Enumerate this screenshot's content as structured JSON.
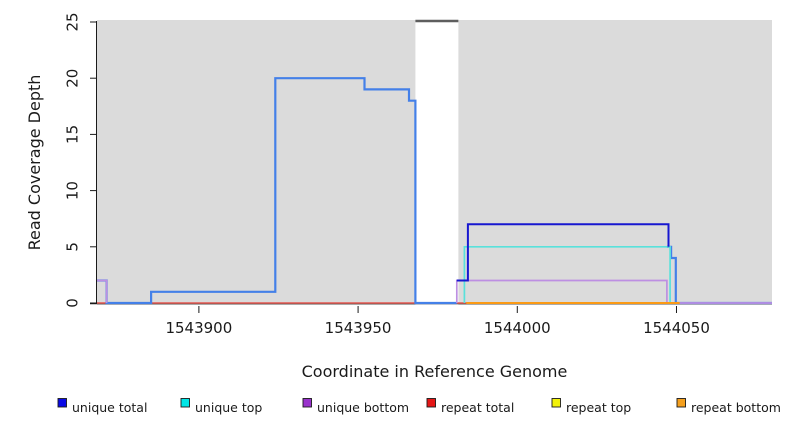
{
  "figure": {
    "xlabel": "Coordinate in Reference Genome",
    "ylabel": "Read Coverage Depth"
  },
  "chart_data": {
    "type": "line",
    "subtype": "step-coverage-plot",
    "title": "",
    "xlabel": "Coordinate in Reference Genome",
    "ylabel": "Read Coverage Depth",
    "xlim": [
      1543868,
      1544080
    ],
    "ylim": [
      0,
      25
    ],
    "grid": "off",
    "plot_background": "#dbdbdb",
    "x_axis": {
      "ticks": [
        1543900,
        1543950,
        1544000,
        1544050
      ],
      "labels": [
        "1543900",
        "1543950",
        "1544000",
        "1544050"
      ]
    },
    "y_axis": {
      "ticks": [
        0,
        5,
        10,
        15,
        20,
        25
      ],
      "labels": [
        "0",
        "5",
        "10",
        "15",
        "20",
        "25"
      ],
      "label_rotation": 90
    },
    "no_data_gap": {
      "x_start": 1543968,
      "x_end": 1543981.5,
      "fill": "#ffffff",
      "top_marker_color": "#5e5e5e",
      "note": "white band with dark off-scale marker at top of plot"
    },
    "series": [
      {
        "id": "repeat-top",
        "name": "repeat top",
        "color": "#f2f20a",
        "line_width": 1.2,
        "segments": [
          [
            [
              1543868,
              0
            ],
            [
              1544080,
              0
            ]
          ]
        ]
      },
      {
        "id": "repeat-total",
        "name": "repeat total",
        "color": "#e25562",
        "line_width": 1.6,
        "segments": [
          [
            [
              1543868,
              0
            ],
            [
              1544080,
              0
            ]
          ]
        ]
      },
      {
        "id": "coverage-total",
        "name": "total coverage line (light blue, unlabeled)",
        "color": "#4480e8",
        "line_width": 2.2,
        "segments": [
          [
            [
              1543868,
              2
            ],
            [
              1543871,
              0
            ],
            [
              1543885,
              1
            ],
            [
              1543924,
              20
            ],
            [
              1543952,
              19
            ],
            [
              1543966,
              18
            ],
            [
              1543968,
              0
            ],
            [
              1543981,
              0
            ]
          ],
          [
            [
              1544047,
              5
            ],
            [
              1544048.3,
              4
            ],
            [
              1544049.8,
              0
            ],
            [
              1544080,
              0
            ]
          ]
        ]
      },
      {
        "id": "unique-bottom",
        "name": "unique bottom",
        "color": "#bd8fe2",
        "line_width": 1.7,
        "segments": [
          [
            [
              1543868,
              2
            ],
            [
              1543871,
              0
            ]
          ],
          [
            [
              1543981,
              0
            ],
            [
              1543981,
              2
            ],
            [
              1544047,
              0
            ],
            [
              1544080,
              0
            ]
          ]
        ]
      },
      {
        "id": "unique-top",
        "name": "unique top",
        "color": "#59e1db",
        "line_width": 1.7,
        "segments": [
          [
            [
              1543983.4,
              0
            ],
            [
              1543983.4,
              5
            ],
            [
              1544048,
              0
            ]
          ]
        ]
      },
      {
        "id": "unique-total",
        "name": "unique total",
        "color": "#1717d0",
        "line_width": 2.0,
        "segments": [
          [
            [
              1543981,
              2
            ],
            [
              1543984.5,
              7
            ],
            [
              1544047.5,
              5
            ]
          ]
        ]
      },
      {
        "id": "repeat-bottom",
        "name": "repeat bottom",
        "color": "#fb9a15",
        "line_width": 2.0,
        "segments": [
          [
            [
              1543984,
              0
            ],
            [
              1544051,
              0
            ]
          ]
        ]
      }
    ],
    "legend": {
      "position": "bottom",
      "items": [
        {
          "label": "unique total",
          "color": "#0a0ae6"
        },
        {
          "label": "unique top",
          "color": "#00e6e6"
        },
        {
          "label": "unique bottom",
          "color": "#9932cc"
        },
        {
          "label": "repeat total",
          "color": "#e51616"
        },
        {
          "label": "repeat top",
          "color": "#f2f20a"
        },
        {
          "label": "repeat bottom",
          "color": "#f5a01e"
        }
      ]
    }
  }
}
